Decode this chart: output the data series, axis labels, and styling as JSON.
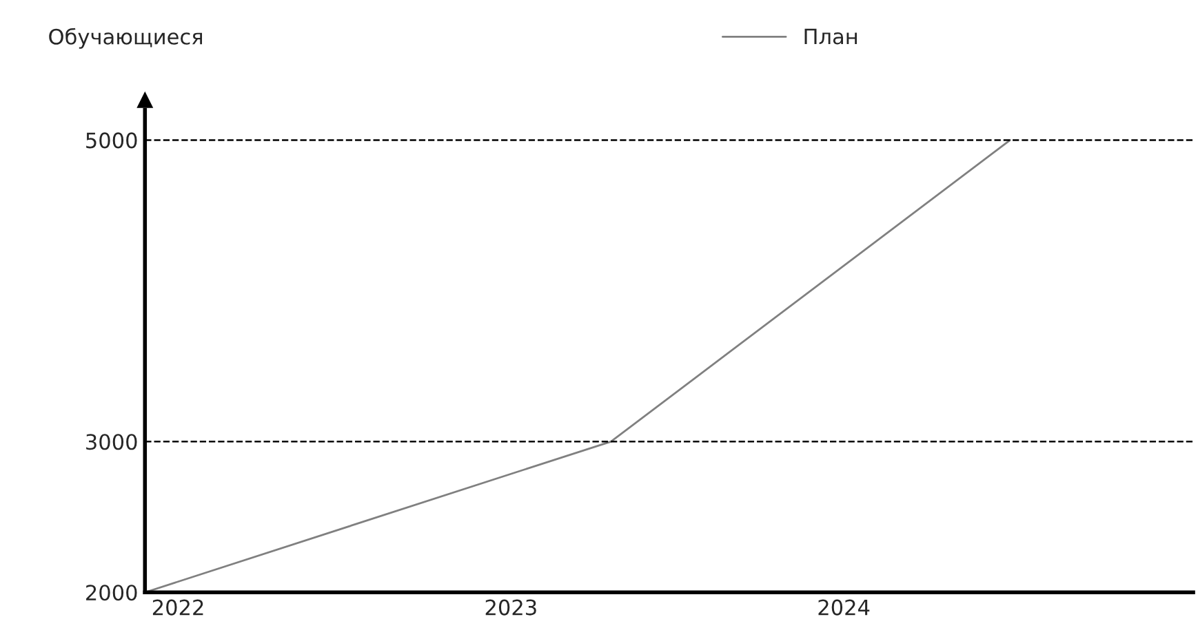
{
  "chart_data": {
    "type": "line",
    "ylabel": "Обучающиеся",
    "x": [
      2021.9,
      2023.3,
      2024.5
    ],
    "series": [
      {
        "name": "План",
        "color": "#808080",
        "values": [
          2000,
          3000,
          5000
        ]
      }
    ],
    "xlim": [
      2021.9,
      2025.05
    ],
    "xticks": [
      2022,
      2023,
      2024
    ],
    "ylim": [
      2000,
      5200
    ],
    "yticks": [
      2000,
      3000,
      5000
    ],
    "ref_lines": [
      {
        "axis": "y",
        "value": 3000,
        "label": null,
        "color": "#000000",
        "line_style": "dashed"
      },
      {
        "axis": "y",
        "value": 5000,
        "label": null,
        "color": "#000000",
        "line_style": "dashed"
      }
    ],
    "grid": false,
    "legend": "top",
    "marker": "none",
    "line_style": "solid"
  }
}
